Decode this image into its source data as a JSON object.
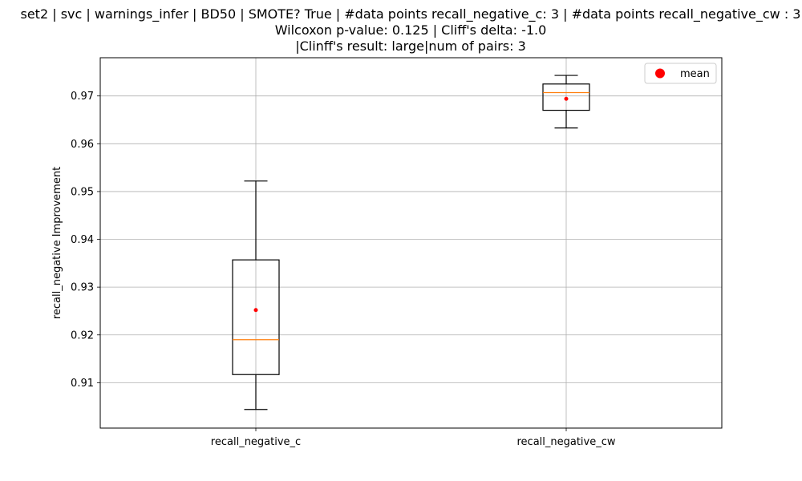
{
  "chart_data": {
    "type": "box",
    "title_lines": [
      "set2 | svc | warnings_infer | BD50 | SMOTE? True | #data points recall_negative_c: 3 | #data points recall_negative_cw : 3",
      "Wilcoxon p-value: 0.125 | Cliff's delta: -1.0",
      "|Clinff's result: large|num of pairs: 3"
    ],
    "xlabel": "",
    "ylabel": "recall_negative Improvement",
    "ylim": [
      0.9005,
      0.978
    ],
    "yticks": [
      0.91,
      0.92,
      0.93,
      0.94,
      0.95,
      0.96,
      0.97
    ],
    "ytick_labels": [
      "0.91",
      "0.92",
      "0.93",
      "0.94",
      "0.95",
      "0.96",
      "0.97"
    ],
    "categories": [
      "recall_negative_c",
      "recall_negative_cw"
    ],
    "boxes": [
      {
        "name": "recall_negative_c",
        "whisker_low": 0.9044,
        "q1": 0.9117,
        "median": 0.919,
        "q3": 0.9357,
        "whisker_high": 0.9522,
        "mean": 0.9252
      },
      {
        "name": "recall_negative_cw",
        "whisker_low": 0.9633,
        "q1": 0.967,
        "median": 0.9707,
        "q3": 0.9725,
        "whisker_high": 0.9743,
        "mean": 0.9694
      }
    ],
    "grid": true,
    "legend": {
      "position": "top-right",
      "entries": [
        {
          "label": "mean",
          "marker": "circle",
          "color": "#ff0000"
        }
      ]
    },
    "colors": {
      "box": "#000000",
      "median": "#ff7f0e",
      "mean": "#ff0000",
      "grid": "#b0b0b0"
    }
  }
}
